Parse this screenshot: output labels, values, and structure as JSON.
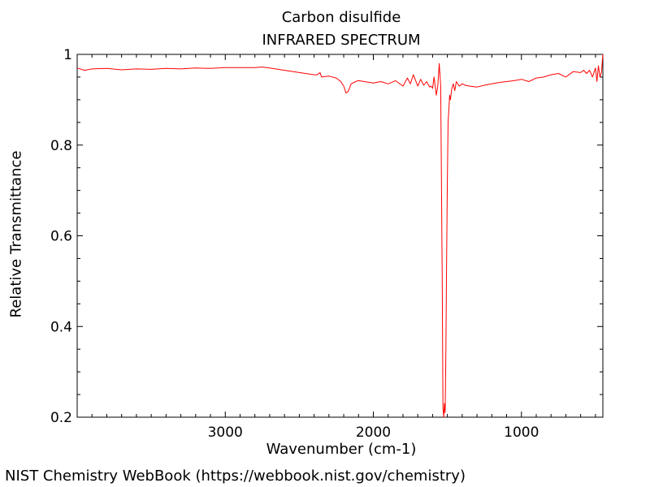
{
  "chart_data": {
    "type": "line",
    "title": "Carbon disulfide",
    "subtitle": "INFRARED SPECTRUM",
    "xlabel": "Wavenumber (cm-1)",
    "ylabel": "Relative Transmittance",
    "xlim": [
      4000,
      450
    ],
    "ylim": [
      0.2,
      1.0
    ],
    "x_ticks": [
      {
        "value": 3000,
        "label": "3000"
      },
      {
        "value": 2000,
        "label": "2000"
      },
      {
        "value": 1000,
        "label": "1000"
      }
    ],
    "y_ticks": [
      {
        "value": 1.0,
        "label": "1"
      },
      {
        "value": 0.8,
        "label": "0.8"
      },
      {
        "value": 0.6,
        "label": "0.6"
      },
      {
        "value": 0.4,
        "label": "0.4"
      },
      {
        "value": 0.2,
        "label": "0.2"
      }
    ],
    "grid": false,
    "series": [
      {
        "color": "#ff0000",
        "x": [
          4000,
          3950,
          3900,
          3800,
          3700,
          3600,
          3500,
          3400,
          3300,
          3200,
          3100,
          3000,
          2900,
          2800,
          2750,
          2700,
          2600,
          2500,
          2400,
          2380,
          2360,
          2350,
          2300,
          2250,
          2220,
          2200,
          2185,
          2170,
          2150,
          2120,
          2100,
          2000,
          1950,
          1900,
          1850,
          1800,
          1770,
          1750,
          1730,
          1700,
          1680,
          1660,
          1640,
          1620,
          1610,
          1600,
          1590,
          1575,
          1565,
          1555,
          1545,
          1535,
          1530,
          1525,
          1520,
          1515,
          1510,
          1505,
          1500,
          1495,
          1490,
          1485,
          1480,
          1470,
          1460,
          1450,
          1440,
          1420,
          1400,
          1380,
          1350,
          1300,
          1250,
          1200,
          1150,
          1100,
          1050,
          1000,
          950,
          900,
          850,
          800,
          750,
          700,
          650,
          600,
          580,
          560,
          540,
          520,
          500,
          490,
          480,
          470,
          460,
          450
        ],
        "y": [
          0.97,
          0.965,
          0.968,
          0.969,
          0.966,
          0.968,
          0.967,
          0.969,
          0.968,
          0.97,
          0.969,
          0.971,
          0.971,
          0.971,
          0.972,
          0.97,
          0.965,
          0.96,
          0.955,
          0.955,
          0.96,
          0.95,
          0.952,
          0.948,
          0.94,
          0.93,
          0.915,
          0.918,
          0.935,
          0.94,
          0.942,
          0.937,
          0.94,
          0.935,
          0.942,
          0.93,
          0.948,
          0.935,
          0.955,
          0.93,
          0.945,
          0.932,
          0.94,
          0.928,
          0.93,
          0.925,
          0.95,
          0.91,
          0.93,
          0.98,
          0.93,
          0.5,
          0.22,
          0.2,
          0.23,
          0.21,
          0.35,
          0.55,
          0.72,
          0.85,
          0.88,
          0.91,
          0.9,
          0.925,
          0.935,
          0.92,
          0.94,
          0.93,
          0.935,
          0.932,
          0.93,
          0.928,
          0.932,
          0.935,
          0.938,
          0.94,
          0.942,
          0.945,
          0.94,
          0.948,
          0.95,
          0.955,
          0.958,
          0.95,
          0.962,
          0.96,
          0.965,
          0.958,
          0.965,
          0.95,
          0.97,
          0.94,
          0.975,
          0.95,
          0.96,
          1.0
        ]
      }
    ]
  },
  "footer": "NIST Chemistry WebBook (https://webbook.nist.gov/chemistry)"
}
